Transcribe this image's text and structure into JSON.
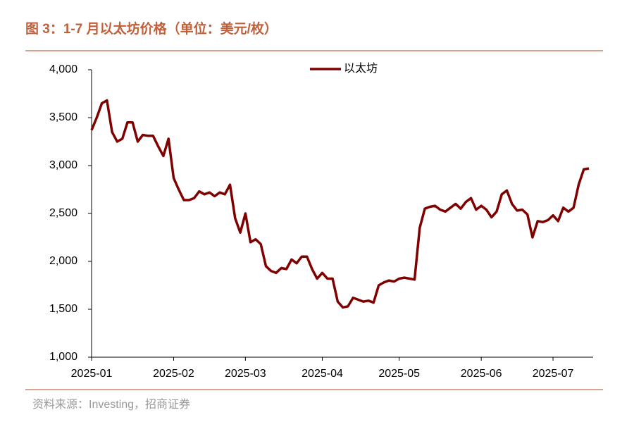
{
  "chart_data": {
    "type": "line",
    "title": "图 3：1-7 月以太坊价格（单位：美元/枚）",
    "source": "资料来源：Investing，招商证券",
    "categories": [
      "2025-01",
      null,
      null,
      null,
      null,
      null,
      null,
      null,
      null,
      null,
      null,
      null,
      null,
      null,
      null,
      null,
      "2025-02",
      null,
      null,
      null,
      null,
      null,
      null,
      null,
      null,
      null,
      null,
      null,
      null,
      null,
      "2025-03",
      null,
      null,
      null,
      null,
      null,
      null,
      null,
      null,
      null,
      null,
      null,
      null,
      null,
      null,
      "2025-04",
      null,
      null,
      null,
      null,
      null,
      null,
      null,
      null,
      null,
      null,
      null,
      null,
      null,
      null,
      "2025-05",
      null,
      null,
      null,
      null,
      null,
      null,
      null,
      null,
      null,
      null,
      null,
      null,
      null,
      null,
      null,
      "2025-06",
      null,
      null,
      null,
      null,
      null,
      null,
      null,
      null,
      null,
      null,
      null,
      null,
      null,
      "2025-07",
      null,
      null,
      null,
      null,
      null,
      null,
      null
    ],
    "series": [
      {
        "name": "以太坊",
        "color": "#800000",
        "values": [
          3370,
          3500,
          3650,
          3680,
          3350,
          3250,
          3280,
          3450,
          3450,
          3250,
          3320,
          3310,
          3310,
          3200,
          3100,
          3280,
          2870,
          2750,
          2640,
          2640,
          2660,
          2730,
          2700,
          2720,
          2680,
          2720,
          2700,
          2800,
          2450,
          2300,
          2500,
          2200,
          2230,
          2180,
          1950,
          1900,
          1880,
          1930,
          1920,
          2020,
          1980,
          2050,
          2050,
          1920,
          1820,
          1880,
          1820,
          1820,
          1580,
          1520,
          1530,
          1620,
          1600,
          1580,
          1590,
          1570,
          1750,
          1780,
          1800,
          1790,
          1820,
          1830,
          1820,
          1810,
          2350,
          2550,
          2570,
          2580,
          2540,
          2520,
          2560,
          2600,
          2550,
          2620,
          2660,
          2540,
          2580,
          2540,
          2460,
          2520,
          2700,
          2740,
          2600,
          2530,
          2540,
          2490,
          2250,
          2420,
          2410,
          2430,
          2480,
          2420,
          2560,
          2520,
          2560,
          2800,
          2960,
          2970
        ]
      }
    ],
    "ylim": [
      1000,
      4000
    ],
    "yticks": [
      {
        "value": 1000,
        "label": "1,000"
      },
      {
        "value": 1500,
        "label": "1,500"
      },
      {
        "value": 2000,
        "label": "2,000"
      },
      {
        "value": 2500,
        "label": "2,500"
      },
      {
        "value": 3000,
        "label": "3,000"
      },
      {
        "value": 3500,
        "label": "3,500"
      },
      {
        "value": 4000,
        "label": "4,000"
      }
    ],
    "grid": false,
    "legend": "top"
  }
}
